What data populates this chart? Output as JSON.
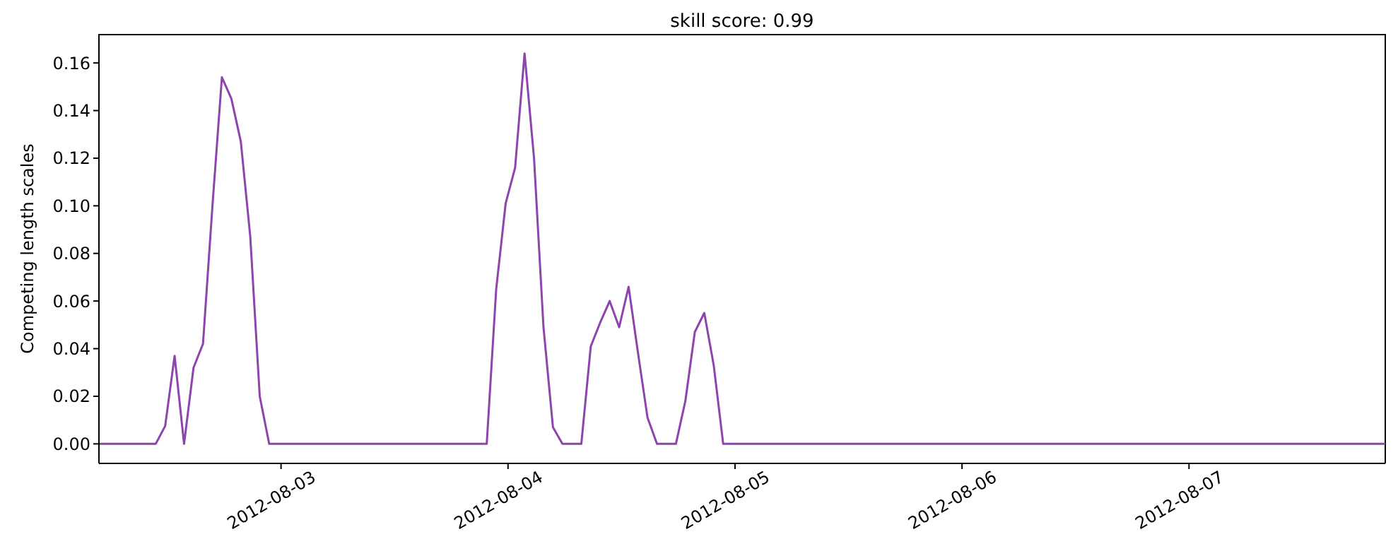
{
  "chart_data": {
    "type": "line",
    "title": "skill score: 0.99",
    "ylabel": "Competing length scales",
    "x": [
      "2012-08-02T04:45",
      "2012-08-02T10:45",
      "2012-08-02T11:45",
      "2012-08-02T12:45",
      "2012-08-02T13:45",
      "2012-08-02T14:45",
      "2012-08-02T15:45",
      "2012-08-02T16:45",
      "2012-08-02T17:45",
      "2012-08-02T18:45",
      "2012-08-02T19:45",
      "2012-08-02T20:45",
      "2012-08-02T21:45",
      "2012-08-02T22:45",
      "2012-08-03T21:45",
      "2012-08-03T22:45",
      "2012-08-03T23:45",
      "2012-08-04T00:45",
      "2012-08-04T01:45",
      "2012-08-04T02:45",
      "2012-08-04T03:45",
      "2012-08-04T04:45",
      "2012-08-04T05:45",
      "2012-08-04T07:45",
      "2012-08-04T08:45",
      "2012-08-04T09:45",
      "2012-08-04T10:45",
      "2012-08-04T11:45",
      "2012-08-04T12:45",
      "2012-08-04T13:45",
      "2012-08-04T14:45",
      "2012-08-04T15:45",
      "2012-08-04T17:45",
      "2012-08-04T18:45",
      "2012-08-04T19:45",
      "2012-08-04T20:45",
      "2012-08-04T21:45",
      "2012-08-04T22:45",
      "2012-08-07T20:45"
    ],
    "series": [
      {
        "color": "#8e44ad",
        "values": [
          0,
          0,
          0.0075,
          0.037,
          0,
          0.032,
          0.042,
          0.1,
          0.154,
          0.145,
          0.127,
          0.087,
          0.02,
          0,
          0,
          0.065,
          0.101,
          0.116,
          0.164,
          0.12,
          0.049,
          0.007,
          0,
          0,
          0.041,
          0.051,
          0.06,
          0.049,
          0.066,
          0.038,
          0.011,
          0,
          0,
          0.018,
          0.047,
          0.055,
          0.033,
          0,
          0
        ]
      }
    ],
    "xlim": [
      "2012-08-02T04:45",
      "2012-08-07T20:45"
    ],
    "xticks": [
      "2012-08-03",
      "2012-08-04",
      "2012-08-05",
      "2012-08-06",
      "2012-08-07"
    ],
    "ylim": [
      -0.0082,
      0.1722
    ],
    "yticks": [
      {
        "value": 0,
        "label": "0.00"
      },
      {
        "value": 0.02,
        "label": "0.02"
      },
      {
        "value": 0.04,
        "label": "0.04"
      },
      {
        "value": 0.06,
        "label": "0.06"
      },
      {
        "value": 0.08,
        "label": "0.08"
      },
      {
        "value": 0.1,
        "label": "0.10"
      },
      {
        "value": 0.12,
        "label": "0.12"
      },
      {
        "value": 0.14,
        "label": "0.14"
      },
      {
        "value": 0.16,
        "label": "0.16"
      }
    ],
    "grid": false,
    "legend": false,
    "marker": "none",
    "line_style": "solid"
  }
}
